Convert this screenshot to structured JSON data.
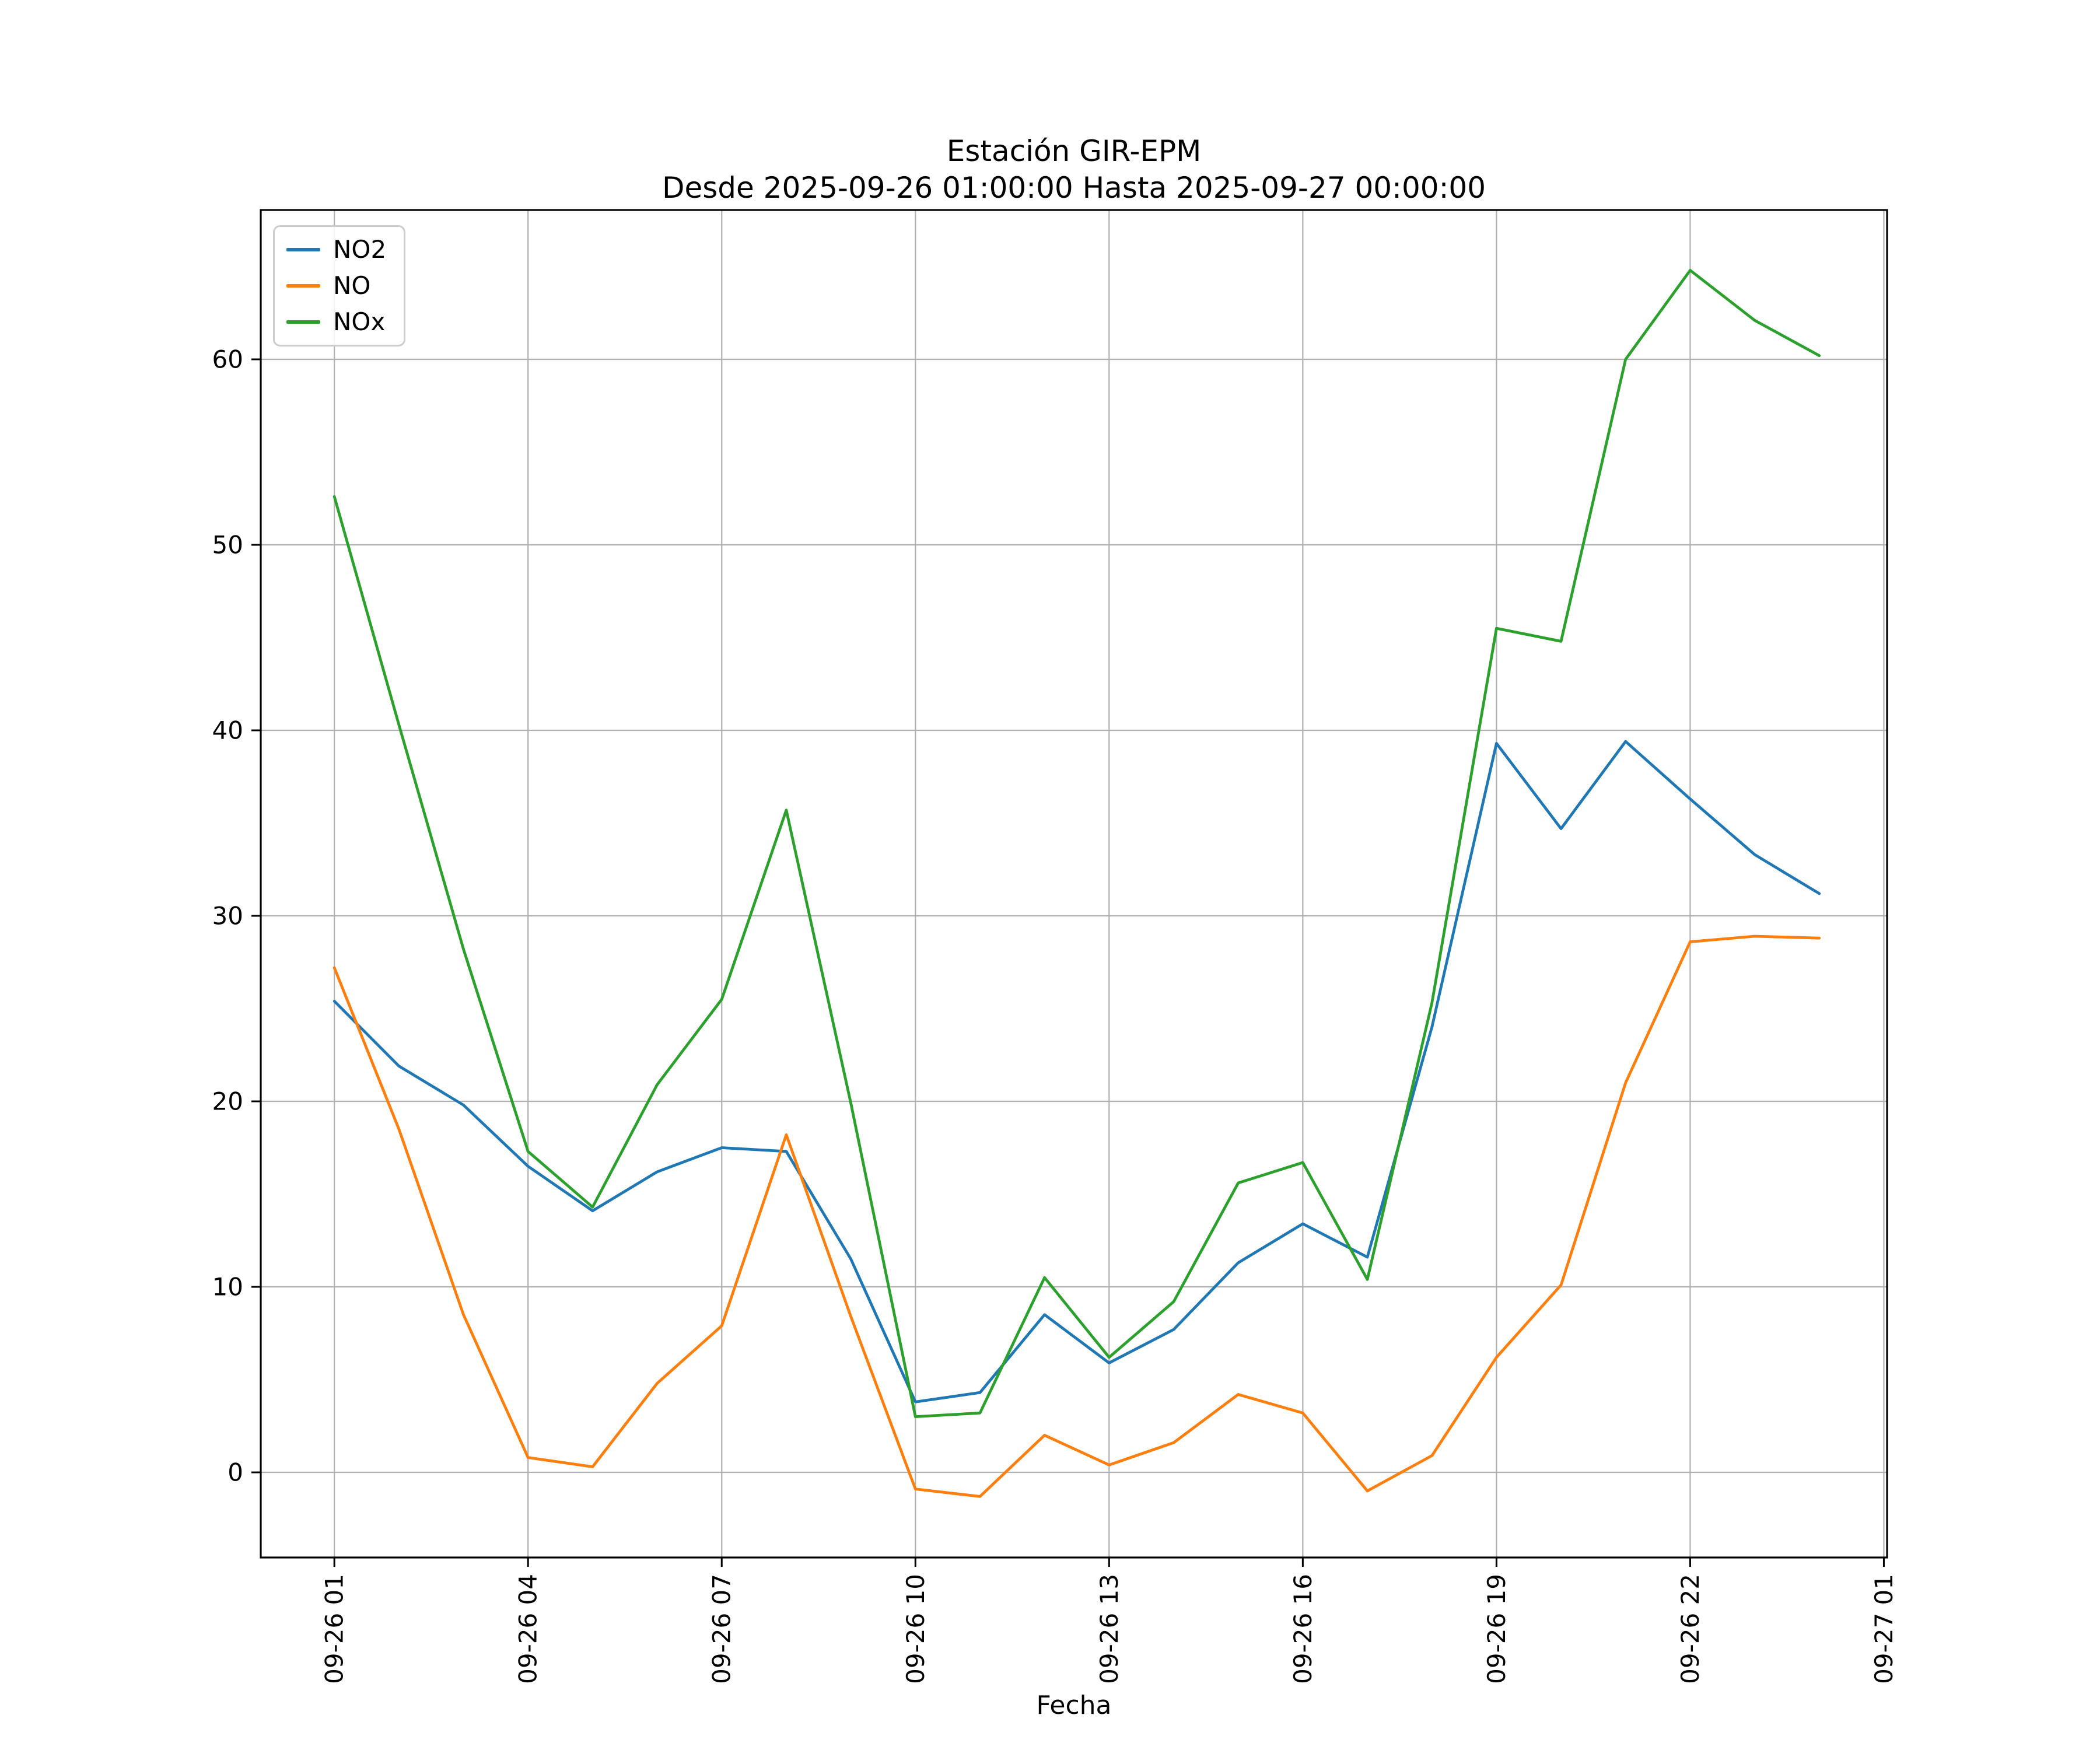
{
  "chart_data": {
    "type": "line",
    "title": "Estación GIR-EPM",
    "subtitle": "Desde 2025-09-26 01:00:00 Hasta 2025-09-27 00:00:00",
    "xlabel": "Fecha",
    "ylabel": "",
    "station": "GIR-EPM",
    "x": [
      "2025-09-26 01:00",
      "2025-09-26 02:00",
      "2025-09-26 03:00",
      "2025-09-26 04:00",
      "2025-09-26 05:00",
      "2025-09-26 06:00",
      "2025-09-26 07:00",
      "2025-09-26 08:00",
      "2025-09-26 09:00",
      "2025-09-26 10:00",
      "2025-09-26 11:00",
      "2025-09-26 12:00",
      "2025-09-26 13:00",
      "2025-09-26 14:00",
      "2025-09-26 15:00",
      "2025-09-26 16:00",
      "2025-09-26 17:00",
      "2025-09-26 18:00",
      "2025-09-26 19:00",
      "2025-09-26 20:00",
      "2025-09-26 21:00",
      "2025-09-26 22:00",
      "2025-09-26 23:00",
      "2025-09-27 00:00"
    ],
    "series": [
      {
        "name": "NO2",
        "color": "#1f77b4",
        "values": [
          25.4,
          21.9,
          19.8,
          16.5,
          14.1,
          16.2,
          17.5,
          17.3,
          11.5,
          3.8,
          4.3,
          8.5,
          5.9,
          7.7,
          11.3,
          13.4,
          11.6,
          24.0,
          39.3,
          34.7,
          39.4,
          36.3,
          33.3,
          31.2
        ]
      },
      {
        "name": "NO",
        "color": "#ff7f0e",
        "values": [
          27.2,
          18.5,
          8.5,
          0.8,
          0.3,
          4.8,
          7.9,
          18.2,
          8.4,
          -0.9,
          -1.3,
          2.0,
          0.4,
          1.6,
          4.2,
          3.2,
          -1.0,
          0.9,
          6.2,
          10.1,
          21.0,
          28.6,
          28.9,
          28.8
        ]
      },
      {
        "name": "NOx",
        "color": "#2ca02c",
        "values": [
          52.6,
          40.3,
          28.2,
          17.3,
          14.3,
          20.9,
          25.5,
          35.7,
          19.9,
          3.0,
          3.2,
          10.5,
          6.2,
          9.2,
          15.6,
          16.7,
          10.4,
          25.3,
          45.5,
          44.8,
          60.0,
          64.8,
          62.1,
          60.2
        ]
      }
    ],
    "x_tick_positions": [
      1,
      4,
      7,
      10,
      13,
      16,
      19,
      22,
      25
    ],
    "x_tick_labels": [
      "09-26 01",
      "09-26 04",
      "09-26 07",
      "09-26 10",
      "09-26 13",
      "09-26 16",
      "09-26 19",
      "09-26 22",
      "09-27 01"
    ],
    "y_ticks": [
      0,
      10,
      20,
      30,
      40,
      50,
      60
    ],
    "xlim": [
      -0.14,
      25.05
    ],
    "ylim": [
      -4.59,
      68.05
    ],
    "grid": true,
    "grid_color": "#b0b0b0",
    "axis_color": "#000000",
    "background_color": "#ffffff",
    "legend_position": "upper left",
    "legend_entries": [
      "NO2",
      "NO",
      "NOx"
    ]
  }
}
